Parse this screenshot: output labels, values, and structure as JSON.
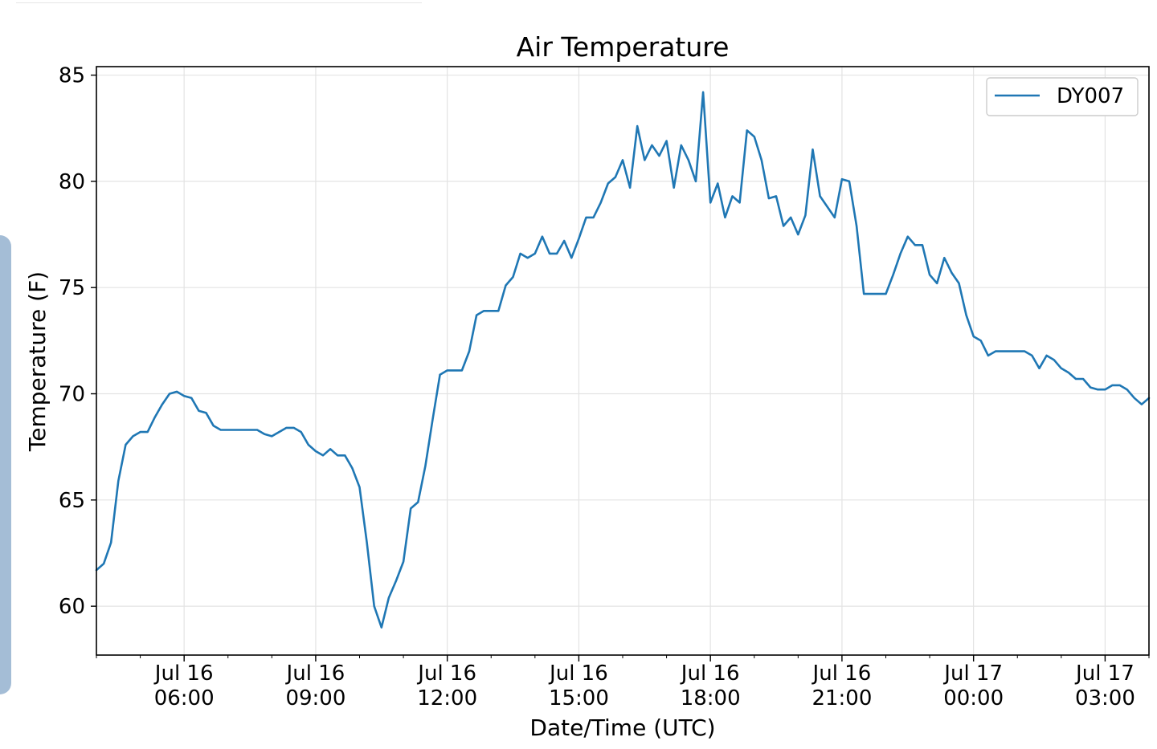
{
  "chart_data": {
    "type": "line",
    "title": "Air Temperature",
    "xlabel": "Date/Time (UTC)",
    "ylabel": "Temperature (F)",
    "ylim": [
      57.7,
      85.4
    ],
    "xlim": [
      "2019-07-16T04:00:00Z",
      "2019-07-17T04:00:00Z"
    ],
    "grid": true,
    "legend_position": "top-right",
    "color": "#1f77b4",
    "y_ticks": [
      60,
      65,
      70,
      75,
      80,
      85
    ],
    "x_ticks": [
      {
        "time": "2019-07-16T06:00:00Z",
        "line1": "Jul 16",
        "line2": "06:00"
      },
      {
        "time": "2019-07-16T09:00:00Z",
        "line1": "Jul 16",
        "line2": "09:00"
      },
      {
        "time": "2019-07-16T12:00:00Z",
        "line1": "Jul 16",
        "line2": "12:00"
      },
      {
        "time": "2019-07-16T15:00:00Z",
        "line1": "Jul 16",
        "line2": "15:00"
      },
      {
        "time": "2019-07-16T18:00:00Z",
        "line1": "Jul 16",
        "line2": "18:00"
      },
      {
        "time": "2019-07-16T21:00:00Z",
        "line1": "Jul 16",
        "line2": "21:00"
      },
      {
        "time": "2019-07-17T00:00:00Z",
        "line1": "Jul 17",
        "line2": "00:00"
      },
      {
        "time": "2019-07-17T03:00:00Z",
        "line1": "Jul 17",
        "line2": "03:00"
      }
    ],
    "series": [
      {
        "name": "DY007",
        "x": [
          "2019-07-16T04:00Z",
          "2019-07-16T04:10Z",
          "2019-07-16T04:20Z",
          "2019-07-16T04:30Z",
          "2019-07-16T04:40Z",
          "2019-07-16T04:50Z",
          "2019-07-16T05:00Z",
          "2019-07-16T05:10Z",
          "2019-07-16T05:20Z",
          "2019-07-16T05:30Z",
          "2019-07-16T05:40Z",
          "2019-07-16T05:50Z",
          "2019-07-16T06:00Z",
          "2019-07-16T06:10Z",
          "2019-07-16T06:20Z",
          "2019-07-16T06:30Z",
          "2019-07-16T06:40Z",
          "2019-07-16T06:50Z",
          "2019-07-16T07:00Z",
          "2019-07-16T07:10Z",
          "2019-07-16T07:20Z",
          "2019-07-16T07:30Z",
          "2019-07-16T07:40Z",
          "2019-07-16T07:50Z",
          "2019-07-16T08:00Z",
          "2019-07-16T08:10Z",
          "2019-07-16T08:20Z",
          "2019-07-16T08:30Z",
          "2019-07-16T08:40Z",
          "2019-07-16T08:50Z",
          "2019-07-16T09:00Z",
          "2019-07-16T09:10Z",
          "2019-07-16T09:20Z",
          "2019-07-16T09:30Z",
          "2019-07-16T09:40Z",
          "2019-07-16T09:50Z",
          "2019-07-16T10:00Z",
          "2019-07-16T10:10Z",
          "2019-07-16T10:20Z",
          "2019-07-16T10:30Z",
          "2019-07-16T10:40Z",
          "2019-07-16T10:50Z",
          "2019-07-16T11:00Z",
          "2019-07-16T11:10Z",
          "2019-07-16T11:20Z",
          "2019-07-16T11:30Z",
          "2019-07-16T11:40Z",
          "2019-07-16T11:50Z",
          "2019-07-16T12:00Z",
          "2019-07-16T12:10Z",
          "2019-07-16T12:20Z",
          "2019-07-16T12:30Z",
          "2019-07-16T12:40Z",
          "2019-07-16T12:50Z",
          "2019-07-16T13:00Z",
          "2019-07-16T13:10Z",
          "2019-07-16T13:20Z",
          "2019-07-16T13:30Z",
          "2019-07-16T13:40Z",
          "2019-07-16T13:50Z",
          "2019-07-16T14:00Z",
          "2019-07-16T14:10Z",
          "2019-07-16T14:20Z",
          "2019-07-16T14:30Z",
          "2019-07-16T14:40Z",
          "2019-07-16T14:50Z",
          "2019-07-16T15:00Z",
          "2019-07-16T15:10Z",
          "2019-07-16T15:20Z",
          "2019-07-16T15:30Z",
          "2019-07-16T15:40Z",
          "2019-07-16T15:50Z",
          "2019-07-16T16:00Z",
          "2019-07-16T16:10Z",
          "2019-07-16T16:20Z",
          "2019-07-16T16:30Z",
          "2019-07-16T16:40Z",
          "2019-07-16T16:50Z",
          "2019-07-16T17:00Z",
          "2019-07-16T17:10Z",
          "2019-07-16T17:20Z",
          "2019-07-16T17:30Z",
          "2019-07-16T17:40Z",
          "2019-07-16T17:50Z",
          "2019-07-16T18:00Z",
          "2019-07-16T18:10Z",
          "2019-07-16T18:20Z",
          "2019-07-16T18:30Z",
          "2019-07-16T18:40Z",
          "2019-07-16T18:50Z",
          "2019-07-16T19:00Z",
          "2019-07-16T19:10Z",
          "2019-07-16T19:20Z",
          "2019-07-16T19:30Z",
          "2019-07-16T19:40Z",
          "2019-07-16T19:50Z",
          "2019-07-16T20:00Z",
          "2019-07-16T20:10Z",
          "2019-07-16T20:20Z",
          "2019-07-16T20:30Z",
          "2019-07-16T20:40Z",
          "2019-07-16T20:50Z",
          "2019-07-16T21:00Z",
          "2019-07-16T21:10Z",
          "2019-07-16T21:20Z",
          "2019-07-16T21:30Z",
          "2019-07-16T21:40Z",
          "2019-07-16T21:50Z",
          "2019-07-16T22:00Z",
          "2019-07-16T22:10Z",
          "2019-07-16T22:20Z",
          "2019-07-16T22:30Z",
          "2019-07-16T22:40Z",
          "2019-07-16T22:50Z",
          "2019-07-16T23:00Z",
          "2019-07-16T23:10Z",
          "2019-07-16T23:20Z",
          "2019-07-16T23:30Z",
          "2019-07-16T23:40Z",
          "2019-07-16T23:50Z",
          "2019-07-17T00:00Z",
          "2019-07-17T00:10Z",
          "2019-07-17T00:20Z",
          "2019-07-17T00:30Z",
          "2019-07-17T00:40Z",
          "2019-07-17T00:50Z",
          "2019-07-17T01:00Z",
          "2019-07-17T01:10Z",
          "2019-07-17T01:20Z",
          "2019-07-17T01:30Z",
          "2019-07-17T01:40Z",
          "2019-07-17T01:50Z",
          "2019-07-17T02:00Z",
          "2019-07-17T02:10Z",
          "2019-07-17T02:20Z",
          "2019-07-17T02:30Z",
          "2019-07-17T02:40Z",
          "2019-07-17T02:50Z",
          "2019-07-17T03:00Z",
          "2019-07-17T03:10Z",
          "2019-07-17T03:20Z",
          "2019-07-17T03:30Z",
          "2019-07-17T03:40Z",
          "2019-07-17T03:50Z",
          "2019-07-17T04:00Z"
        ],
        "y": [
          61.7,
          62.0,
          63.0,
          65.9,
          67.6,
          68.0,
          68.2,
          68.2,
          68.9,
          69.5,
          70.0,
          70.1,
          69.9,
          69.8,
          69.2,
          69.1,
          68.5,
          68.3,
          68.3,
          68.3,
          68.3,
          68.3,
          68.3,
          68.1,
          68.0,
          68.2,
          68.4,
          68.4,
          68.2,
          67.6,
          67.3,
          67.1,
          67.4,
          67.1,
          67.1,
          66.5,
          65.6,
          63.0,
          60.0,
          59.0,
          60.4,
          61.2,
          62.1,
          64.6,
          64.9,
          66.6,
          68.8,
          70.9,
          71.1,
          71.1,
          71.1,
          72.0,
          73.7,
          73.9,
          73.9,
          73.9,
          75.1,
          75.5,
          76.6,
          76.4,
          76.6,
          77.4,
          76.6,
          76.6,
          77.2,
          76.4,
          77.3,
          78.3,
          78.3,
          79.0,
          79.9,
          80.2,
          81.0,
          79.7,
          82.6,
          81.0,
          81.7,
          81.2,
          81.9,
          79.7,
          81.7,
          81.0,
          80.0,
          84.2,
          79.0,
          79.9,
          78.3,
          79.3,
          79.0,
          82.4,
          82.1,
          81.0,
          79.2,
          79.3,
          77.9,
          78.3,
          77.5,
          78.4,
          81.5,
          79.3,
          78.8,
          78.3,
          80.1,
          80.0,
          77.9,
          74.7,
          74.7,
          74.7,
          74.7,
          75.6,
          76.6,
          77.4,
          77.0,
          77.0,
          75.6,
          75.2,
          76.4,
          75.7,
          75.2,
          73.7,
          72.7,
          72.5,
          71.8,
          72.0,
          72.0,
          72.0,
          72.0,
          72.0,
          71.8,
          71.2,
          71.8,
          71.6,
          71.2,
          71.0,
          70.7,
          70.7,
          70.3,
          70.2,
          70.2,
          70.4,
          70.4,
          70.2,
          69.8,
          69.5,
          69.8
        ]
      }
    ]
  }
}
